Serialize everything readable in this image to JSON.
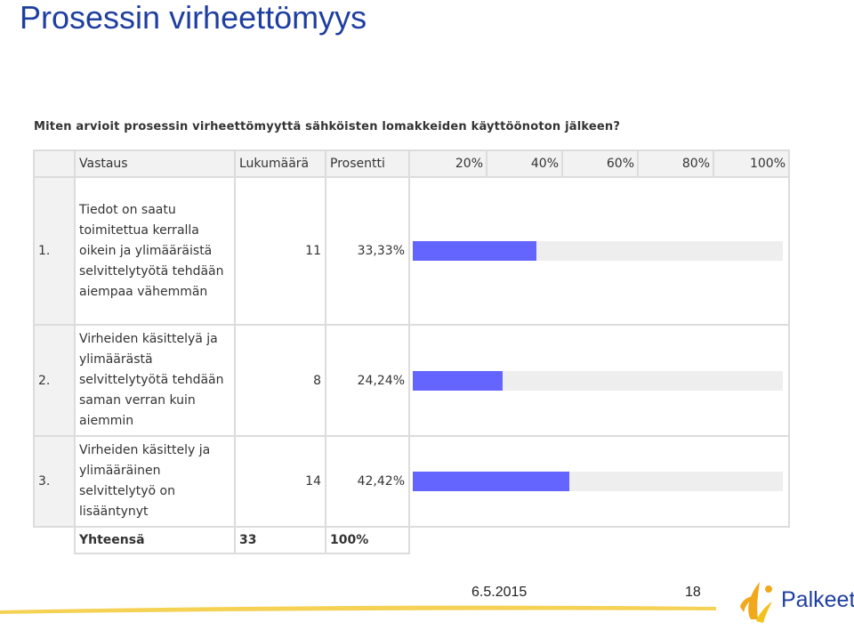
{
  "slide": {
    "title": "Prosessin virheettömyys",
    "date": "6.5.2015",
    "page": "18",
    "logo_text": "Palkeet"
  },
  "colors": {
    "title": "#1f3fa0",
    "bar": "#6464ff",
    "bar_track": "#eeeeee",
    "footer_accent": "#f2c21b"
  },
  "chart_data": {
    "type": "bar",
    "question": "Miten arvioit prosessin virheettömyyttä sähköisten lomakkeiden käyttöönoton jälkeen?",
    "columns": [
      "Vastaus",
      "Lukumäärä",
      "Prosentti"
    ],
    "scale_ticks": [
      "20%",
      "40%",
      "60%",
      "80%",
      "100%"
    ],
    "xlim": [
      0,
      100
    ],
    "rows": [
      {
        "num": "1.",
        "answer": "Tiedot on saatu toimitettua kerralla oikein ja ylimääräistä selvittelytyötä tehdään aiempaa vähemmän",
        "count": "11",
        "percent_label": "33,33%",
        "percent": 33.33
      },
      {
        "num": "2.",
        "answer": "Virheiden käsittelyä ja ylimäärästä selvittelytyötä tehdään saman verran kuin aiemmin",
        "count": "8",
        "percent_label": "24,24%",
        "percent": 24.24
      },
      {
        "num": "3.",
        "answer": "Virheiden käsittely ja ylimääräinen selvittelytyö on lisääntynyt",
        "count": "14",
        "percent_label": "42,42%",
        "percent": 42.42
      }
    ],
    "total": {
      "label": "Yhteensä",
      "count": "33",
      "percent_label": "100%"
    }
  }
}
